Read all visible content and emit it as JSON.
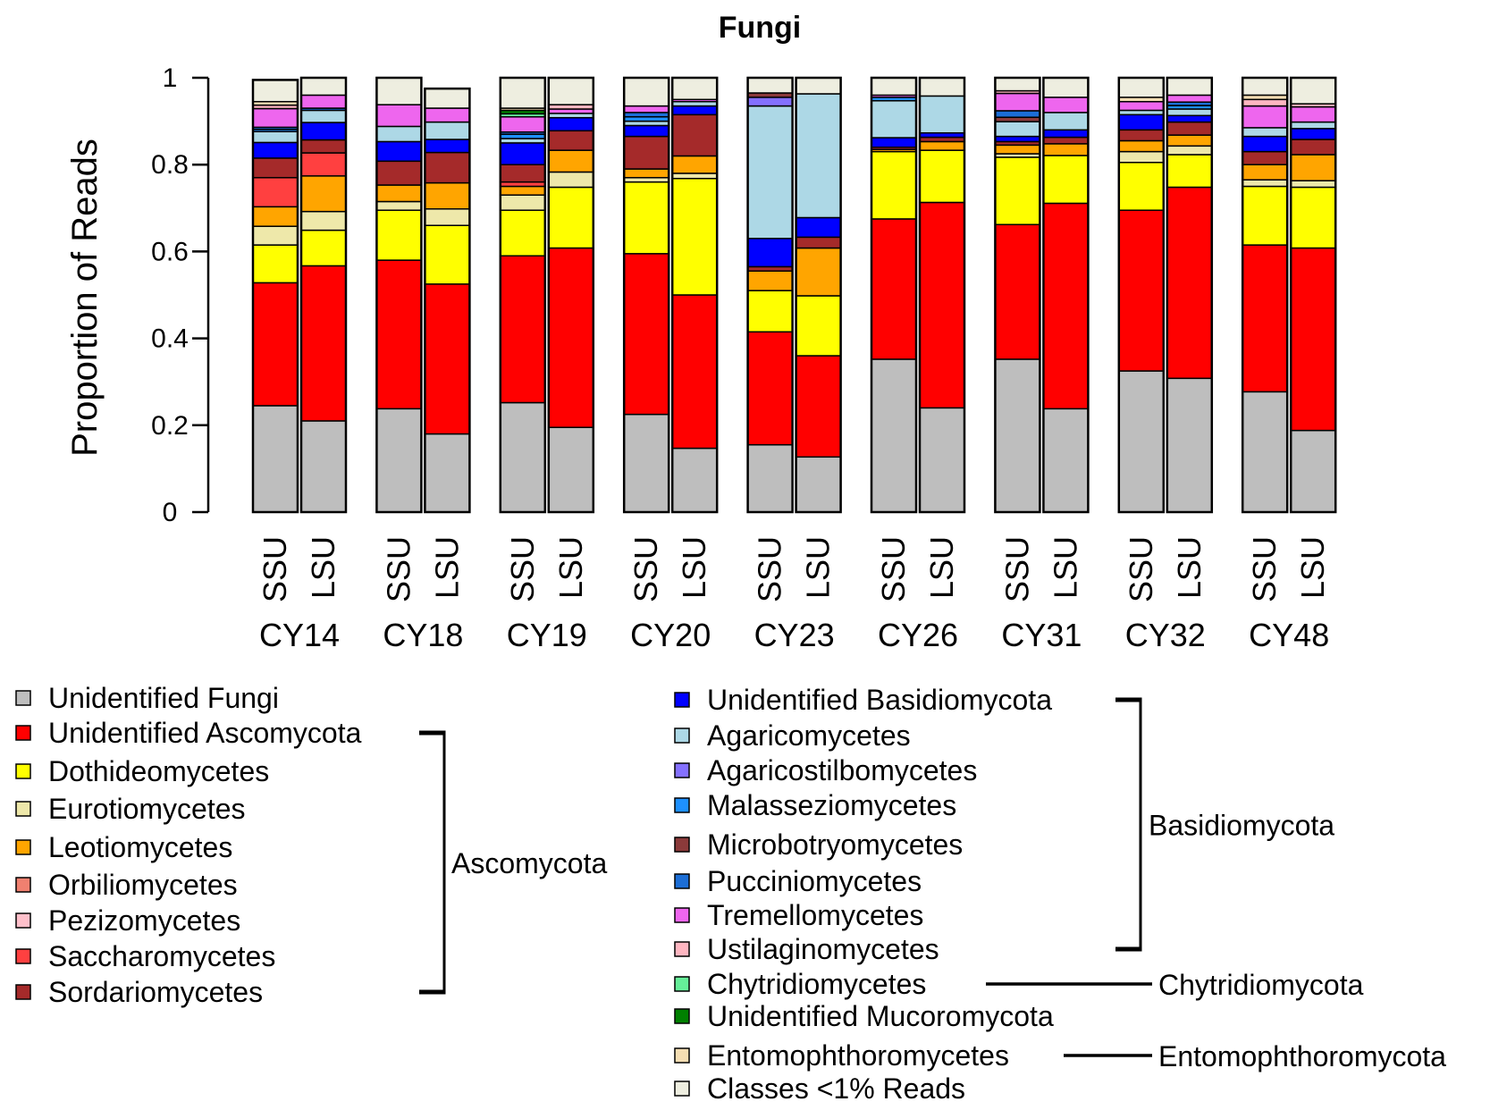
{
  "chart_data": {
    "type": "bar",
    "stacked": true,
    "title": "Fungi",
    "ylabel": "Proportion of Reads",
    "xlabel": "",
    "ylim": [
      0,
      1
    ],
    "yticks": [
      "0",
      "0.2",
      "0.4",
      "0.6",
      "0.8",
      "1"
    ],
    "grid": false,
    "legend_position": "bottom",
    "groups": [
      "CY14",
      "CY18",
      "CY19",
      "CY20",
      "CY23",
      "CY26",
      "CY31",
      "CY32",
      "CY48"
    ],
    "markers": [
      "SSU",
      "LSU"
    ],
    "classes": [
      {
        "name": "Unidentified Fungi",
        "color": "#bebebe"
      },
      {
        "name": "Unidentified Ascomycota",
        "color": "#ff0000"
      },
      {
        "name": "Dothideomycetes",
        "color": "#ffff00"
      },
      {
        "name": "Eurotiomycetes",
        "color": "#eee8aa"
      },
      {
        "name": "Leotiomycetes",
        "color": "#ffa500"
      },
      {
        "name": "Orbiliomycetes",
        "color": "#f08070"
      },
      {
        "name": "Pezizomycetes",
        "color": "#ffc0cb"
      },
      {
        "name": "Saccharomycetes",
        "color": "#ff4040"
      },
      {
        "name": "Sordariomycetes",
        "color": "#a52a2a"
      },
      {
        "name": "Unidentified Basidiomycota",
        "color": "#0000ff"
      },
      {
        "name": "Agaricomycetes",
        "color": "#add8e6"
      },
      {
        "name": "Agaricostilbomycetes",
        "color": "#8470ff"
      },
      {
        "name": "Malasseziomycetes",
        "color": "#1e90ff"
      },
      {
        "name": "Microbotryomycetes",
        "color": "#8b3a3a"
      },
      {
        "name": "Pucciniomycetes",
        "color": "#1c6ed6"
      },
      {
        "name": "Tremellomycetes",
        "color": "#ee66ee"
      },
      {
        "name": "Ustilaginomycetes",
        "color": "#ffb6c1"
      },
      {
        "name": "Chytridiomycetes",
        "color": "#66ee99"
      },
      {
        "name": "Unidentified Mucoromycota",
        "color": "#008000"
      },
      {
        "name": "Entomophthoromycetes",
        "color": "#f5deb3"
      },
      {
        "name": "Classes <1% Reads",
        "color": "#eeeee0"
      }
    ],
    "series_values": {
      "CY14 SSU": [
        0.245,
        0.283,
        0.087,
        0.043,
        0.045,
        0,
        0,
        0.067,
        0.045,
        0.036,
        0.025,
        0,
        0.005,
        0,
        0.005,
        0.043,
        0.008,
        0,
        0,
        0.008,
        0.05
      ],
      "CY14 LSU": [
        0.21,
        0.357,
        0.082,
        0.043,
        0.082,
        0,
        0,
        0.053,
        0.03,
        0.04,
        0.028,
        0,
        0,
        0,
        0.005,
        0.03,
        0,
        0,
        0,
        0,
        0.04
      ],
      "CY18 SSU": [
        0.238,
        0.342,
        0.115,
        0.02,
        0.038,
        0,
        0,
        0,
        0.055,
        0.045,
        0.035,
        0,
        0,
        0,
        0,
        0.05,
        0,
        0,
        0,
        0,
        0.062
      ],
      "CY18 LSU": [
        0.18,
        0.345,
        0.135,
        0.038,
        0.06,
        0,
        0,
        0,
        0.07,
        0.03,
        0.04,
        0,
        0,
        0,
        0,
        0.032,
        0,
        0,
        0,
        0,
        0.045
      ],
      "CY19 SSU": [
        0.252,
        0.338,
        0.105,
        0.035,
        0.02,
        0,
        0,
        0.01,
        0.04,
        0.05,
        0.01,
        0,
        0.01,
        0,
        0.005,
        0.035,
        0,
        0.007,
        0.008,
        0.005,
        0.07
      ],
      "CY19 LSU": [
        0.195,
        0.413,
        0.14,
        0.035,
        0.05,
        0,
        0,
        0,
        0.045,
        0.03,
        0.01,
        0,
        0,
        0,
        0,
        0.01,
        0.01,
        0,
        0,
        0,
        0.062
      ],
      "CY20 SSU": [
        0.225,
        0.37,
        0.165,
        0.01,
        0.02,
        0,
        0,
        0,
        0.075,
        0.025,
        0.01,
        0,
        0.01,
        0,
        0.01,
        0.015,
        0,
        0,
        0,
        0,
        0.065
      ],
      "CY20 LSU": [
        0.147,
        0.353,
        0.268,
        0.012,
        0.04,
        0,
        0,
        0,
        0.095,
        0.02,
        0.01,
        0,
        0,
        0,
        0,
        0.005,
        0,
        0,
        0,
        0,
        0.05
      ],
      "CY23 SSU": [
        0.155,
        0.26,
        0.095,
        0,
        0.045,
        0,
        0,
        0,
        0.01,
        0.065,
        0.305,
        0.02,
        0,
        0.01,
        0,
        0,
        0,
        0,
        0,
        0,
        0.035
      ],
      "CY23 LSU": [
        0.127,
        0.233,
        0.138,
        0,
        0.11,
        0,
        0,
        0,
        0.025,
        0.045,
        0.285,
        0,
        0,
        0,
        0,
        0,
        0,
        0,
        0,
        0,
        0.037
      ],
      "CY26 SSU": [
        0.352,
        0.323,
        0.155,
        0,
        0.005,
        0,
        0,
        0,
        0.005,
        0.022,
        0.085,
        0,
        0.008,
        0,
        0,
        0.005,
        0,
        0,
        0,
        0,
        0.04
      ],
      "CY26 LSU": [
        0.24,
        0.473,
        0.12,
        0,
        0.02,
        0,
        0,
        0,
        0.01,
        0.01,
        0.085,
        0,
        0,
        0,
        0,
        0,
        0,
        0,
        0,
        0,
        0.042
      ],
      "CY31 SSU": [
        0.352,
        0.31,
        0.155,
        0.008,
        0.02,
        0,
        0,
        0,
        0.008,
        0.012,
        0.034,
        0,
        0,
        0.01,
        0.015,
        0.04,
        0.006,
        0,
        0,
        0,
        0.03
      ],
      "CY31 LSU": [
        0.238,
        0.473,
        0.11,
        0,
        0.027,
        0,
        0,
        0,
        0.015,
        0.017,
        0.04,
        0,
        0,
        0,
        0,
        0.035,
        0,
        0,
        0,
        0,
        0.045
      ],
      "CY32 SSU": [
        0.325,
        0.37,
        0.11,
        0.025,
        0.025,
        0,
        0,
        0,
        0.025,
        0.035,
        0.01,
        0,
        0,
        0,
        0,
        0.02,
        0,
        0,
        0,
        0.01,
        0.045
      ],
      "CY32 LSU": [
        0.308,
        0.44,
        0.075,
        0.02,
        0.025,
        0,
        0,
        0,
        0.03,
        0.015,
        0.015,
        0,
        0.008,
        0,
        0.008,
        0.016,
        0,
        0,
        0,
        0,
        0.04
      ],
      "CY48 SSU": [
        0.277,
        0.338,
        0.135,
        0.015,
        0.035,
        0,
        0,
        0,
        0.03,
        0.035,
        0.02,
        0,
        0,
        0,
        0,
        0.05,
        0.015,
        0,
        0,
        0.01,
        0.04
      ],
      "CY48 LSU": [
        0.188,
        0.42,
        0.14,
        0.015,
        0.06,
        0,
        0,
        0,
        0.035,
        0.025,
        0.015,
        0,
        0,
        0,
        0,
        0.035,
        0.007,
        0,
        0,
        0,
        0.06
      ]
    },
    "phylum_brackets": [
      {
        "label": "Ascomycota",
        "first": "Unidentified Ascomycota",
        "last": "Sordariomycetes"
      },
      {
        "label": "Basidiomycota",
        "first": "Unidentified Basidiomycota",
        "last": "Ustilaginomycetes"
      },
      {
        "label": "Chytridiomycota",
        "first": "Chytridiomycetes",
        "last": "Chytridiomycetes"
      },
      {
        "label": "Entomophthoromycota",
        "first": "Entomophthoromycetes",
        "last": "Entomophthoromycetes"
      }
    ]
  }
}
